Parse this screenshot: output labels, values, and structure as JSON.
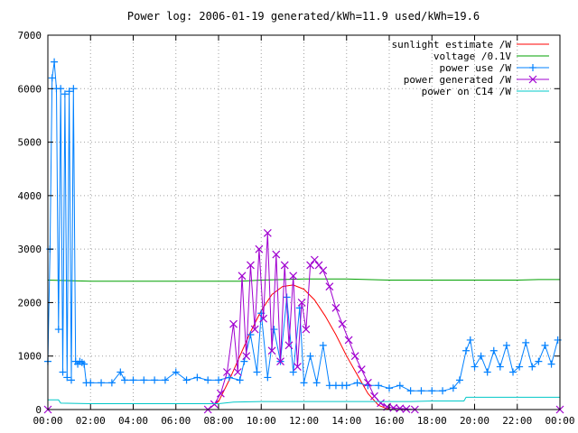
{
  "chart_data": {
    "type": "line",
    "title": "Power log: 2006-01-19 generated/kWh=11.9 used/kWh=19.6",
    "xlabel": "",
    "ylabel": "",
    "xlim": [
      0,
      24
    ],
    "ylim": [
      0,
      7000
    ],
    "grid": true,
    "legend_position": "top-right",
    "x_ticks": [
      {
        "value": 0,
        "label": "00:00"
      },
      {
        "value": 2,
        "label": "02:00"
      },
      {
        "value": 4,
        "label": "04:00"
      },
      {
        "value": 6,
        "label": "06:00"
      },
      {
        "value": 8,
        "label": "08:00"
      },
      {
        "value": 10,
        "label": "10:00"
      },
      {
        "value": 12,
        "label": "12:00"
      },
      {
        "value": 14,
        "label": "14:00"
      },
      {
        "value": 16,
        "label": "16:00"
      },
      {
        "value": 18,
        "label": "18:00"
      },
      {
        "value": 20,
        "label": "20:00"
      },
      {
        "value": 22,
        "label": "22:00"
      },
      {
        "value": 24,
        "label": "00:00"
      }
    ],
    "y_ticks": [
      {
        "value": 0,
        "label": "0"
      },
      {
        "value": 1000,
        "label": "1000"
      },
      {
        "value": 2000,
        "label": "2000"
      },
      {
        "value": 3000,
        "label": "3000"
      },
      {
        "value": 4000,
        "label": "4000"
      },
      {
        "value": 5000,
        "label": "5000"
      },
      {
        "value": 6000,
        "label": "6000"
      },
      {
        "value": 7000,
        "label": "7000"
      }
    ],
    "series": [
      {
        "name": "sunlight estimate /W",
        "color": "#ff0000",
        "marker": "none",
        "x": [
          7.5,
          8,
          8.5,
          9,
          9.5,
          10,
          10.5,
          11,
          11.5,
          12,
          12.5,
          13,
          13.5,
          14,
          14.5,
          15,
          15.5,
          16,
          16.5
        ],
        "y": [
          0,
          150,
          550,
          1000,
          1450,
          1850,
          2150,
          2300,
          2330,
          2250,
          2050,
          1750,
          1400,
          1000,
          650,
          300,
          80,
          0,
          0
        ]
      },
      {
        "name": "voltage /0.1V",
        "color": "#00a000",
        "marker": "none",
        "x": [
          0,
          1,
          2,
          3,
          4,
          5,
          6,
          7,
          8,
          9,
          10,
          11,
          12,
          13,
          14,
          15,
          16,
          17,
          18,
          19,
          20,
          21,
          22,
          23,
          24
        ],
        "y": [
          2420,
          2410,
          2400,
          2400,
          2400,
          2400,
          2400,
          2400,
          2400,
          2400,
          2420,
          2430,
          2440,
          2440,
          2440,
          2430,
          2420,
          2420,
          2420,
          2420,
          2420,
          2420,
          2420,
          2430,
          2430
        ]
      },
      {
        "name": "power use /W",
        "color": "#0080ff",
        "marker": "plus",
        "x": [
          0,
          0.1,
          0.2,
          0.3,
          0.4,
          0.5,
          0.6,
          0.7,
          0.8,
          0.9,
          1.0,
          1.1,
          1.2,
          1.3,
          1.4,
          1.5,
          1.6,
          1.7,
          1.8,
          2.0,
          2.5,
          3.0,
          3.4,
          3.6,
          4.0,
          4.5,
          5.0,
          5.5,
          6.0,
          6.5,
          7.0,
          7.5,
          8.0,
          8.5,
          9.0,
          9.2,
          9.5,
          9.8,
          10.0,
          10.3,
          10.6,
          10.9,
          11.2,
          11.5,
          11.8,
          12.0,
          12.3,
          12.6,
          12.9,
          13.2,
          13.5,
          13.8,
          14.0,
          14.5,
          15.0,
          15.5,
          16.0,
          16.5,
          17.0,
          17.5,
          18.0,
          18.5,
          19.0,
          19.3,
          19.6,
          19.8,
          20.0,
          20.3,
          20.6,
          20.9,
          21.2,
          21.5,
          21.8,
          22.1,
          22.4,
          22.7,
          23.0,
          23.3,
          23.6,
          23.9
        ],
        "y": [
          900,
          3000,
          6200,
          6500,
          6000,
          1500,
          6000,
          700,
          5900,
          600,
          5950,
          550,
          6000,
          900,
          850,
          900,
          880,
          850,
          500,
          500,
          500,
          500,
          700,
          550,
          550,
          550,
          550,
          550,
          700,
          550,
          600,
          550,
          550,
          600,
          550,
          900,
          1400,
          700,
          1800,
          600,
          1500,
          900,
          2100,
          700,
          1900,
          500,
          1000,
          500,
          1200,
          450,
          450,
          450,
          450,
          500,
          450,
          450,
          400,
          450,
          350,
          350,
          350,
          350,
          400,
          550,
          1100,
          1300,
          800,
          1000,
          700,
          1100,
          800,
          1200,
          700,
          800,
          1250,
          800,
          900,
          1200,
          850,
          1300
        ]
      },
      {
        "name": "power generated /W",
        "color": "#a000d0",
        "marker": "cross",
        "x": [
          0,
          7.5,
          7.8,
          8.1,
          8.4,
          8.7,
          8.9,
          9.1,
          9.3,
          9.5,
          9.7,
          9.9,
          10.1,
          10.3,
          10.5,
          10.7,
          10.9,
          11.1,
          11.3,
          11.5,
          11.7,
          11.9,
          12.1,
          12.3,
          12.5,
          12.7,
          12.9,
          13.2,
          13.5,
          13.8,
          14.1,
          14.4,
          14.7,
          15.0,
          15.3,
          15.6,
          15.9,
          16.2,
          16.5,
          16.8,
          17.2,
          24
        ],
        "y": [
          0,
          0,
          100,
          300,
          700,
          1600,
          700,
          2500,
          1000,
          2700,
          1500,
          3000,
          1700,
          3300,
          1100,
          2900,
          900,
          2700,
          1200,
          2500,
          800,
          2000,
          1500,
          2700,
          2800,
          2700,
          2600,
          2300,
          1900,
          1600,
          1300,
          1000,
          750,
          500,
          250,
          120,
          50,
          30,
          20,
          10,
          0,
          0
        ]
      },
      {
        "name": "power on C14 /W",
        "color": "#00c8c8",
        "marker": "none",
        "x": [
          0,
          0.5,
          0.6,
          2.0,
          4.0,
          6.0,
          8.0,
          8.7,
          10.0,
          12.0,
          14.0,
          16.0,
          17.0,
          18.0,
          19.5,
          19.6,
          22.0,
          24
        ],
        "y": [
          180,
          180,
          120,
          110,
          110,
          110,
          110,
          140,
          150,
          150,
          150,
          150,
          150,
          160,
          160,
          230,
          230,
          230
        ]
      }
    ]
  }
}
